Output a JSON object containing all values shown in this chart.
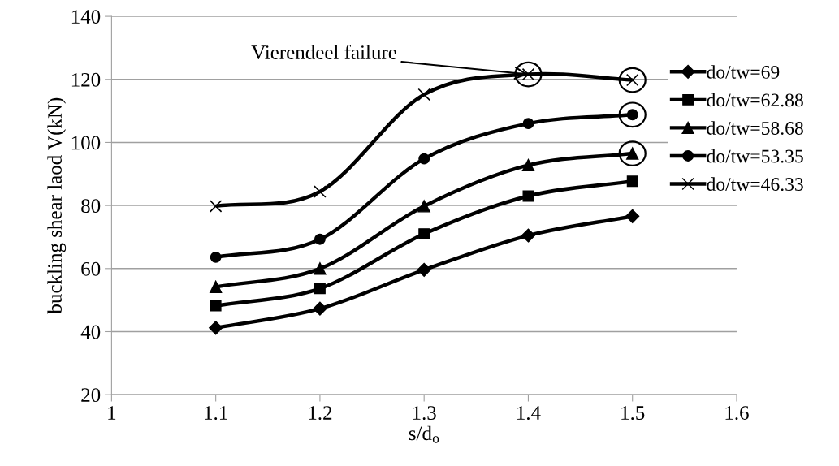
{
  "chart_data": {
    "type": "line",
    "xlabel": "s/d$_{o}$",
    "ylabel": "buckling shear laod V(kN)",
    "x": [
      1.1,
      1.2,
      1.3,
      1.4,
      1.5
    ],
    "xlim": [
      1,
      1.6
    ],
    "xticks": [
      1,
      1.1,
      1.2,
      1.3,
      1.4,
      1.5,
      1.6
    ],
    "ylim": [
      20,
      140
    ],
    "yticks": [
      20,
      40,
      60,
      80,
      100,
      120,
      140
    ],
    "grid": "y",
    "legend": "right",
    "line_style": "solid",
    "annotations": [
      {
        "text": "Vierendeel failure",
        "x": 1.4,
        "y": 121.6
      }
    ],
    "series": [
      {
        "name": "do/tw=69",
        "color": "#000000",
        "marker": "diamond",
        "values": [
          41.2,
          47.3,
          59.6,
          70.5,
          76.6
        ]
      },
      {
        "name": "do/tw=62.88",
        "color": "#000000",
        "marker": "square",
        "values": [
          48.2,
          53.7,
          71.0,
          83.0,
          87.7
        ]
      },
      {
        "name": "do/tw=58.68",
        "color": "#000000",
        "marker": "triangle",
        "values": [
          54.2,
          60.0,
          79.8,
          92.8,
          96.5
        ]
      },
      {
        "name": "do/tw=53.35",
        "color": "#000000",
        "marker": "circle",
        "values": [
          63.6,
          69.3,
          94.8,
          106.0,
          108.8
        ]
      },
      {
        "name": "do/tw=46.33",
        "color": "#000000",
        "marker": "cross",
        "values": [
          79.8,
          84.4,
          115.2,
          121.6,
          119.8
        ]
      }
    ]
  }
}
